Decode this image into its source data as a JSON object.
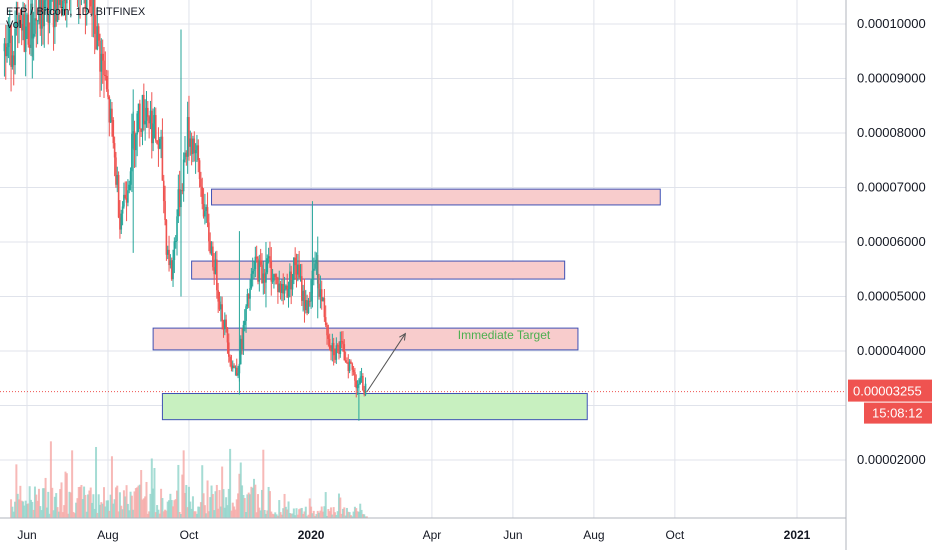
{
  "header": {
    "symbol": "ETP / Bitcoin, 1D, BITFINEX",
    "volume_label": "Vol"
  },
  "price_tag": {
    "value": "0.00003255",
    "countdown": "15:08:12",
    "color": "#ef5350"
  },
  "annotation": {
    "text": "Immediate Target",
    "color": "#4caf50"
  },
  "colors": {
    "up": "#26a69a",
    "down": "#ef5350",
    "grid": "#e0e3eb",
    "zone_red_fill": "#f8cccc",
    "zone_border": "#3f51b5",
    "zone_green_fill": "#c8f0c0"
  },
  "chart_data": {
    "type": "candlestick",
    "y_axis": {
      "side": "right",
      "ticks": [
        "0.00010000",
        "0.00009000",
        "0.00008000",
        "0.00007000",
        "0.00006000",
        "0.00005000",
        "0.00004000",
        "0.00002000"
      ],
      "tick_values": [
        0.0001,
        9e-05,
        8e-05,
        7e-05,
        6e-05,
        5e-05,
        4e-05,
        2e-05
      ]
    },
    "x_axis": {
      "ticks": [
        "Jun",
        "Aug",
        "Oct",
        "2020",
        "Apr",
        "Jun",
        "Aug",
        "Oct",
        "2021"
      ],
      "tick_dates": [
        "2019-06-01",
        "2019-08-01",
        "2019-10-01",
        "2020-01-01",
        "2020-04-01",
        "2020-06-01",
        "2020-08-01",
        "2020-10-01",
        "2021-01-01"
      ]
    },
    "last_price": 3.255e-05,
    "zones": [
      {
        "type": "resistance",
        "from": "2019-10-18",
        "to": "2020-09-20",
        "low": 6.68e-05,
        "high": 6.97e-05
      },
      {
        "type": "resistance",
        "from": "2019-10-03",
        "to": "2020-07-10",
        "low": 5.32e-05,
        "high": 5.65e-05
      },
      {
        "type": "resistance",
        "from": "2019-09-04",
        "to": "2020-07-20",
        "low": 4.02e-05,
        "high": 4.42e-05
      },
      {
        "type": "support",
        "from": "2019-09-11",
        "to": "2020-07-27",
        "low": 2.74e-05,
        "high": 3.22e-05
      }
    ],
    "arrow": {
      "from_date": "2020-02-12",
      "from_price": 3.25e-05,
      "to_date": "2020-03-12",
      "to_price": 4.32e-05
    },
    "price_path": [
      [
        "2019-05-15",
        9.5e-05
      ],
      [
        "2019-06-05",
        0.0001
      ],
      [
        "2019-06-25",
        0.000105
      ],
      [
        "2019-07-10",
        0.00011
      ],
      [
        "2019-07-20",
        0.000102
      ],
      [
        "2019-07-28",
        9.2e-05
      ],
      [
        "2019-08-04",
        8e-05
      ],
      [
        "2019-08-10",
        6.5e-05
      ],
      [
        "2019-08-15",
        7e-05
      ],
      [
        "2019-08-22",
        8.2e-05
      ],
      [
        "2019-08-30",
        8.5e-05
      ],
      [
        "2019-09-05",
        8e-05
      ],
      [
        "2019-09-10",
        7.6e-05
      ],
      [
        "2019-09-14",
        6e-05
      ],
      [
        "2019-09-18",
        5.4e-05
      ],
      [
        "2019-09-22",
        6.5e-05
      ],
      [
        "2019-09-26",
        7.2e-05
      ],
      [
        "2019-09-30",
        8e-05
      ],
      [
        "2019-10-05",
        7.8e-05
      ],
      [
        "2019-10-10",
        7e-05
      ],
      [
        "2019-10-15",
        6.2e-05
      ],
      [
        "2019-10-20",
        5.6e-05
      ],
      [
        "2019-10-25",
        4.8e-05
      ],
      [
        "2019-10-30",
        4.2e-05
      ],
      [
        "2019-11-02",
        3.8e-05
      ],
      [
        "2019-11-06",
        3.6e-05
      ],
      [
        "2019-11-10",
        4.2e-05
      ],
      [
        "2019-11-15",
        5e-05
      ],
      [
        "2019-11-20",
        5.6e-05
      ],
      [
        "2019-11-25",
        5.4e-05
      ],
      [
        "2019-11-30",
        5.6e-05
      ],
      [
        "2019-12-05",
        5.3e-05
      ],
      [
        "2019-12-10",
        5.1e-05
      ],
      [
        "2019-12-15",
        5.2e-05
      ],
      [
        "2019-12-20",
        5.6e-05
      ],
      [
        "2019-12-24",
        5.2e-05
      ],
      [
        "2019-12-28",
        4.8e-05
      ],
      [
        "2020-01-01",
        5.1e-05
      ],
      [
        "2020-01-04",
        5.6e-05
      ],
      [
        "2020-01-07",
        5.2e-05
      ],
      [
        "2020-01-11",
        4.7e-05
      ],
      [
        "2020-01-15",
        4.2e-05
      ],
      [
        "2020-01-19",
        4e-05
      ],
      [
        "2020-01-23",
        4.05e-05
      ],
      [
        "2020-01-27",
        3.9e-05
      ],
      [
        "2020-01-31",
        3.7e-05
      ],
      [
        "2020-02-04",
        3.45e-05
      ],
      [
        "2020-02-08",
        3.4e-05
      ],
      [
        "2020-02-12",
        3.26e-05
      ]
    ],
    "spikes": [
      [
        "2019-06-05",
        0.00012,
        9e-05
      ],
      [
        "2019-07-10",
        0.000125,
        0.0001
      ],
      [
        "2019-08-20",
        8.8e-05,
        5.8e-05
      ],
      [
        "2019-09-25",
        9.9e-05,
        5e-05
      ],
      [
        "2019-11-08",
        6.2e-05,
        3.2e-05
      ],
      [
        "2019-11-28",
        6e-05,
        4.8e-05
      ],
      [
        "2020-01-02",
        6.75e-05,
        4.8e-05
      ],
      [
        "2020-01-06",
        6.1e-05,
        4.6e-05
      ],
      [
        "2020-02-06",
        3.5e-05,
        2.72e-05
      ]
    ]
  }
}
